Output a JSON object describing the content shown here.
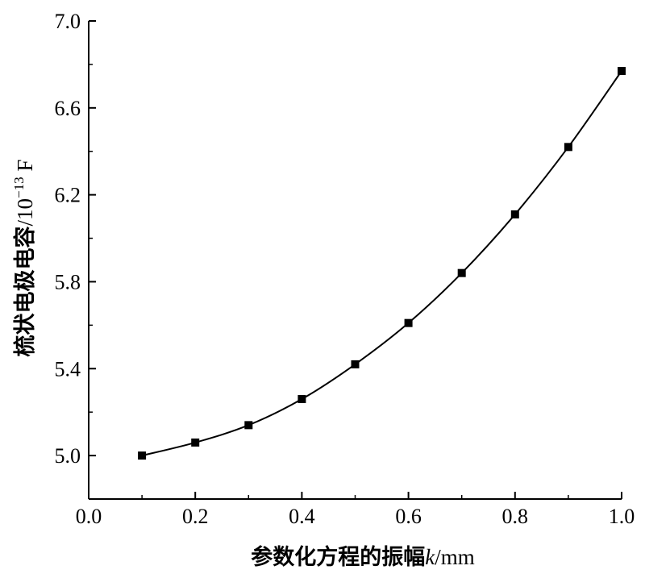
{
  "chart_data": {
    "type": "line",
    "title": "",
    "xlabel_cn": "参数化方程的振幅",
    "xlabel_var": "k",
    "xlabel_unit": "/mm",
    "ylabel_cn": "梳状电极电容",
    "ylabel_unit_pre": "/10",
    "ylabel_unit_exp": "−13",
    "ylabel_unit_post": " F",
    "xlim": [
      0.0,
      1.0
    ],
    "ylim": [
      4.8,
      7.0
    ],
    "xticks": [
      0.0,
      0.2,
      0.4,
      0.6,
      0.8,
      1.0
    ],
    "xtick_labels": [
      "0.0",
      "0.2",
      "0.4",
      "0.6",
      "0.8",
      "1.0"
    ],
    "yticks": [
      5.0,
      5.4,
      5.8,
      6.2,
      6.6,
      7.0
    ],
    "ytick_labels": [
      "5.0",
      "5.4",
      "5.8",
      "6.2",
      "6.6",
      "7.0"
    ],
    "grid": false,
    "series": [
      {
        "marker": "square",
        "color": "#000000",
        "x": [
          0.1,
          0.2,
          0.3,
          0.4,
          0.5,
          0.6,
          0.7,
          0.8,
          0.9,
          1.0
        ],
        "y": [
          5.0,
          5.06,
          5.14,
          5.26,
          5.42,
          5.61,
          5.84,
          6.11,
          6.42,
          6.77
        ]
      }
    ]
  }
}
